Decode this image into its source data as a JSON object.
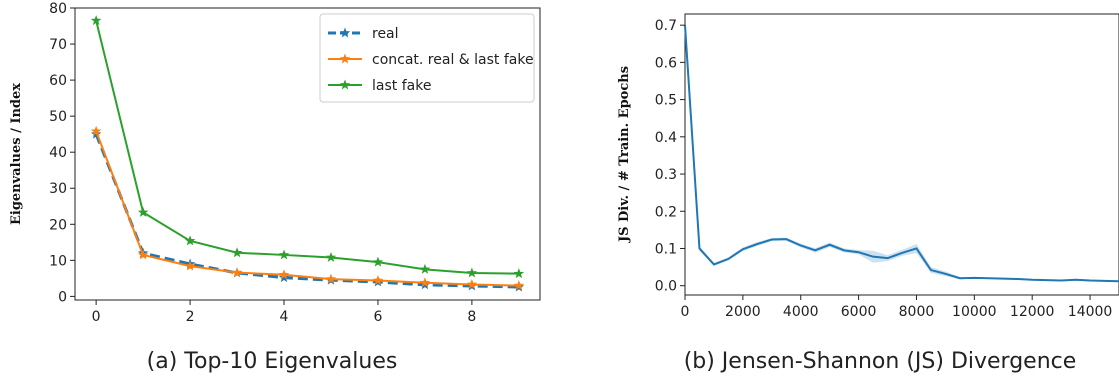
{
  "chart_data": [
    {
      "type": "line",
      "caption": "(a) Top-10 Eigenvalues",
      "ylabel": "Eigenvalues / Index",
      "xlim": [
        -0.45,
        9.45
      ],
      "ylim": [
        -1,
        80
      ],
      "x_ticks": [
        0,
        2,
        4,
        6,
        8
      ],
      "y_ticks": [
        0,
        10,
        20,
        30,
        40,
        50,
        60,
        70,
        80
      ],
      "x": [
        0,
        1,
        2,
        3,
        4,
        5,
        6,
        7,
        8,
        9
      ],
      "legend_position": "top-right",
      "series": [
        {
          "name": "real",
          "color": "#1f77b4",
          "dashed": true,
          "values": [
            45.0,
            12.0,
            9.0,
            6.5,
            5.2,
            4.5,
            4.0,
            3.2,
            2.9,
            2.6
          ]
        },
        {
          "name": "concat. real & last fake",
          "color": "#ff7f0e",
          "dashed": false,
          "values": [
            45.8,
            11.5,
            8.4,
            6.6,
            6.0,
            4.8,
            4.4,
            3.8,
            3.3,
            3.0
          ]
        },
        {
          "name": "last fake",
          "color": "#2ca02c",
          "dashed": false,
          "values": [
            76.5,
            23.3,
            15.4,
            12.1,
            11.5,
            10.8,
            9.5,
            7.5,
            6.5,
            6.3
          ]
        }
      ]
    },
    {
      "type": "line",
      "caption": "(b) Jensen-Shannon (JS) Divergence",
      "ylabel": "JS Div. / # Train. Epochs",
      "xlim": [
        0,
        15000
      ],
      "ylim": [
        -0.025,
        0.73
      ],
      "x_ticks": [
        0,
        2000,
        4000,
        6000,
        8000,
        10000,
        12000,
        14000
      ],
      "y_ticks": [
        0.0,
        0.1,
        0.2,
        0.3,
        0.4,
        0.5,
        0.6,
        0.7
      ],
      "series": [
        {
          "color": "#1f77b4",
          "x": [
            0,
            500,
            1000,
            1500,
            2000,
            2500,
            3000,
            3500,
            4000,
            4500,
            5000,
            5500,
            6000,
            6500,
            7000,
            7500,
            8000,
            8500,
            9000,
            9500,
            10000,
            10500,
            11000,
            11500,
            12000,
            12500,
            13000,
            13500,
            14000,
            14500,
            15000
          ],
          "values": [
            0.7,
            0.1,
            0.057,
            0.072,
            0.098,
            0.112,
            0.124,
            0.125,
            0.108,
            0.095,
            0.11,
            0.095,
            0.09,
            0.078,
            0.074,
            0.088,
            0.1,
            0.042,
            0.032,
            0.02,
            0.021,
            0.02,
            0.019,
            0.018,
            0.016,
            0.015,
            0.014,
            0.016,
            0.014,
            0.013,
            0.012
          ],
          "band": [
            0.01,
            0.006,
            0.004,
            0.004,
            0.005,
            0.005,
            0.004,
            0.004,
            0.005,
            0.006,
            0.006,
            0.005,
            0.006,
            0.016,
            0.008,
            0.008,
            0.012,
            0.008,
            0.006,
            0.003,
            0.002,
            0.002,
            0.002,
            0.002,
            0.002,
            0.002,
            0.002,
            0.002,
            0.002,
            0.002,
            0.002
          ]
        }
      ]
    }
  ]
}
